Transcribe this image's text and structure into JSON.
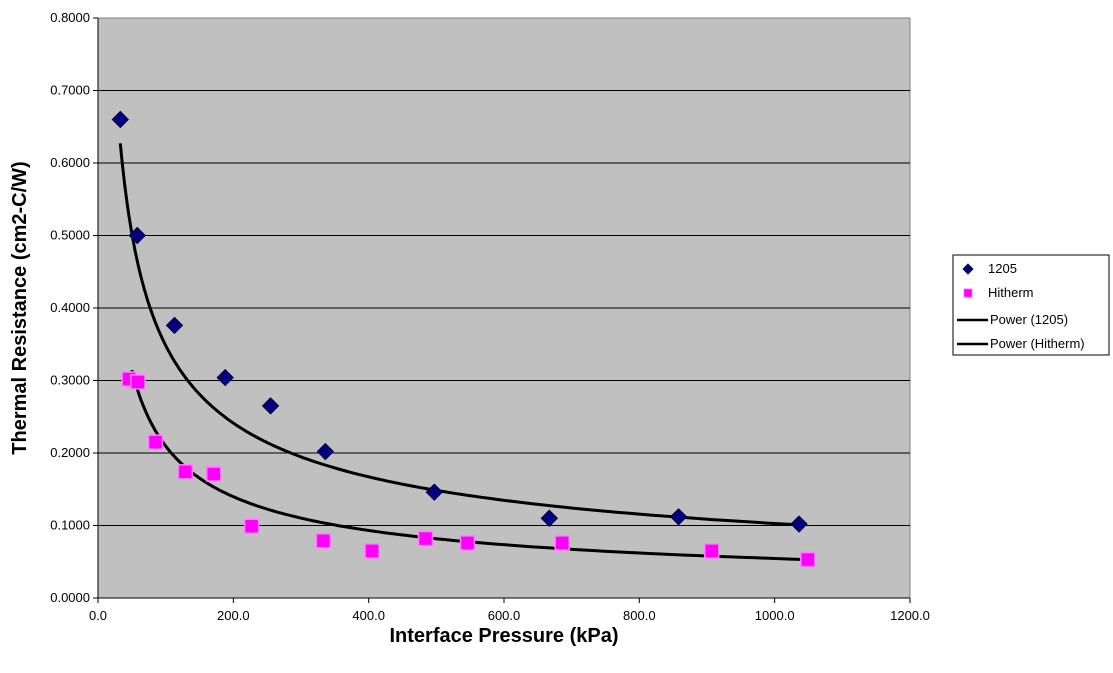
{
  "chart_data": {
    "type": "scatter",
    "title": "",
    "xlabel": "Interface Pressure (kPa)",
    "ylabel": "Thermal Resistance (cm2-C/W)",
    "xlim": [
      0,
      1200
    ],
    "ylim": [
      0,
      0.8
    ],
    "x_ticks": [
      "0.0",
      "200.0",
      "400.0",
      "600.0",
      "800.0",
      "1000.0",
      "1200.0"
    ],
    "y_ticks": [
      "0.0000",
      "0.1000",
      "0.2000",
      "0.3000",
      "0.4000",
      "0.5000",
      "0.6000",
      "0.7000",
      "0.8000"
    ],
    "grid": "horizontal",
    "plot_background": "#c0c0c0",
    "legend_position": "right",
    "series": [
      {
        "name": "1205",
        "marker": "diamond",
        "color": "#000080",
        "points": [
          {
            "x": 33,
            "y": 0.66
          },
          {
            "x": 58,
            "y": 0.5
          },
          {
            "x": 113,
            "y": 0.376
          },
          {
            "x": 188,
            "y": 0.304
          },
          {
            "x": 255,
            "y": 0.265
          },
          {
            "x": 336,
            "y": 0.202
          },
          {
            "x": 497,
            "y": 0.146
          },
          {
            "x": 667,
            "y": 0.11
          },
          {
            "x": 858,
            "y": 0.112
          },
          {
            "x": 1036,
            "y": 0.102
          }
        ]
      },
      {
        "name": "Hitherm",
        "marker": "square",
        "color": "#ff00ff",
        "points": [
          {
            "x": 46,
            "y": 0.302
          },
          {
            "x": 59,
            "y": 0.298
          },
          {
            "x": 85,
            "y": 0.215
          },
          {
            "x": 129,
            "y": 0.174
          },
          {
            "x": 171,
            "y": 0.171
          },
          {
            "x": 227,
            "y": 0.099
          },
          {
            "x": 333,
            "y": 0.079
          },
          {
            "x": 405,
            "y": 0.065
          },
          {
            "x": 484,
            "y": 0.082
          },
          {
            "x": 546,
            "y": 0.076
          },
          {
            "x": 686,
            "y": 0.076
          },
          {
            "x": 907,
            "y": 0.065
          },
          {
            "x": 1049,
            "y": 0.053
          }
        ]
      }
    ],
    "trendlines": [
      {
        "name": "Power (1205)",
        "type": "power",
        "color": "#000000",
        "coef": 4.0,
        "exponent": -0.53,
        "x_range": [
          33,
          1036
        ]
      },
      {
        "name": "Power (Hitherm)",
        "type": "power",
        "color": "#000000",
        "coef": 3.1,
        "exponent": -0.585,
        "x_range": [
          50,
          1049
        ]
      }
    ]
  }
}
